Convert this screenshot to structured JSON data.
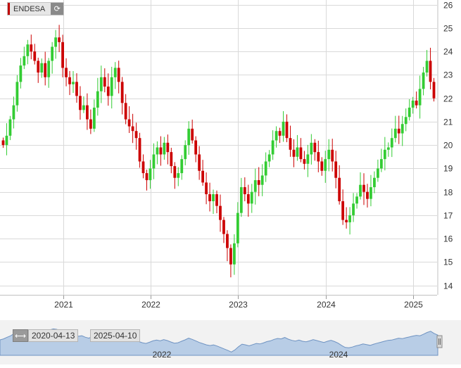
{
  "ticker": "ENDESA",
  "icons": {
    "refresh": "refresh-icon",
    "range": "double-arrow-icon"
  },
  "navigator": {
    "from": "2020-04-13",
    "to": "2025-04-10",
    "year_labels": [
      "2022",
      "2024"
    ]
  },
  "colors": {
    "up": "#33cc33",
    "down": "#cc0000",
    "grid": "#d9d9d9",
    "navFill": "#b8cde6",
    "navLine": "#6f93c2"
  },
  "chart_data": {
    "type": "candlestick",
    "y_ticks": [
      "14",
      "15",
      "16",
      "17",
      "18",
      "19",
      "20",
      "21",
      "22",
      "23",
      "24",
      "25",
      "26"
    ],
    "ylim": [
      13.6,
      26.2
    ],
    "x_ticks": [
      "2021",
      "2022",
      "2023",
      "2024",
      "2025"
    ],
    "x_tick_dates": [
      "2021-01-01",
      "2022-01-01",
      "2023-01-01",
      "2024-01-01",
      "2025-01-01"
    ],
    "start": "2020-04-13",
    "end": "2025-04-10",
    "closes": [
      20.0,
      20.4,
      21.1,
      21.7,
      22.7,
      23.4,
      23.8,
      24.3,
      24.0,
      23.6,
      23.1,
      23.5,
      22.9,
      23.6,
      24.2,
      24.6,
      24.4,
      23.3,
      22.9,
      22.6,
      22.7,
      22.1,
      21.5,
      21.7,
      21.1,
      20.7,
      21.6,
      22.3,
      22.9,
      22.5,
      22.1,
      22.9,
      23.3,
      22.7,
      21.8,
      21.1,
      20.8,
      20.6,
      20.3,
      19.3,
      18.8,
      18.5,
      19.0,
      19.6,
      19.9,
      19.6,
      20.1,
      19.7,
      19.1,
      18.6,
      18.8,
      19.4,
      20.0,
      20.7,
      20.2,
      19.6,
      18.9,
      18.4,
      17.9,
      17.6,
      17.9,
      17.4,
      16.8,
      16.2,
      15.6,
      14.9,
      15.8,
      17.1,
      18.2,
      17.9,
      17.5,
      18.0,
      18.5,
      18.3,
      18.7,
      19.3,
      19.6,
      20.2,
      20.6,
      20.4,
      21.0,
      20.3,
      19.8,
      19.5,
      19.9,
      19.4,
      19.2,
      19.6,
      20.1,
      19.7,
      19.3,
      18.9,
      19.4,
      19.8,
      19.3,
      18.6,
      17.6,
      16.8,
      16.7,
      17.0,
      17.5,
      17.8,
      18.3,
      18.0,
      17.7,
      18.2,
      18.6,
      19.0,
      19.4,
      19.8,
      19.9,
      20.3,
      20.7,
      20.5,
      20.9,
      21.2,
      21.6,
      21.9,
      21.7,
      22.4,
      23.1,
      23.6,
      22.7,
      22.0
    ]
  }
}
